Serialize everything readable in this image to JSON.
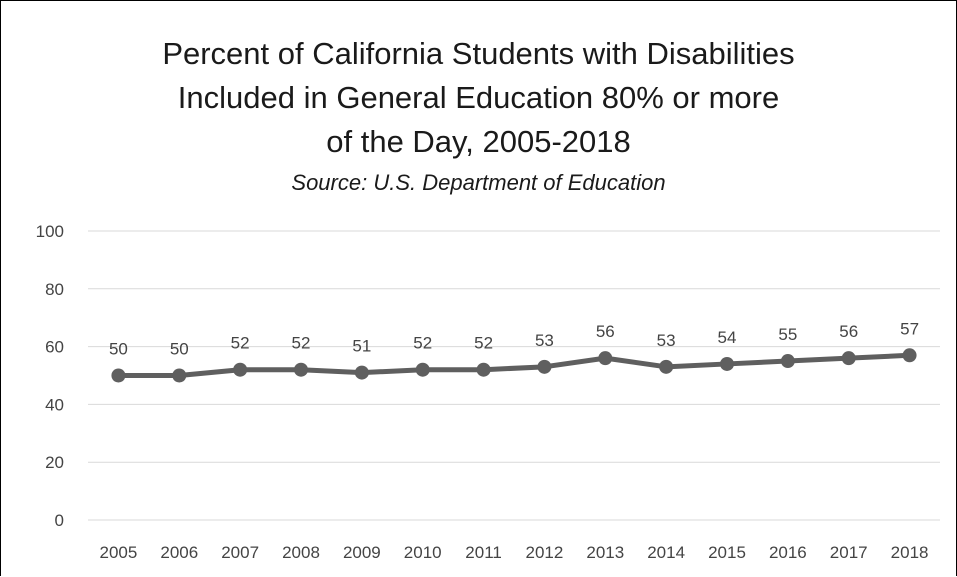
{
  "chart_data": {
    "type": "line",
    "title_lines": [
      "Percent of California Students with Disabilities",
      "Included in General Education 80% or more",
      "of the Day, 2005-2018"
    ],
    "subtitle": "Source:  U.S. Department of Education",
    "xlabel": "",
    "ylabel": "",
    "categories": [
      "2005",
      "2006",
      "2007",
      "2008",
      "2009",
      "2010",
      "2011",
      "2012",
      "2013",
      "2014",
      "2015",
      "2016",
      "2017",
      "2018"
    ],
    "series": [
      {
        "values": [
          50,
          50,
          52,
          52,
          51,
          52,
          52,
          53,
          56,
          53,
          54,
          55,
          56,
          57
        ]
      }
    ],
    "data_labels": [
      "50",
      "50",
      "52",
      "52",
      "51",
      "52",
      "52",
      "53",
      "56",
      "53",
      "54",
      "55",
      "56",
      "57"
    ],
    "ylim": [
      0,
      100
    ],
    "yticks": [
      0,
      20,
      40,
      60,
      80,
      100
    ],
    "ytick_labels": [
      "0",
      "20",
      "40",
      "60",
      "80",
      "100"
    ],
    "grid": true,
    "legend": "none",
    "colors": {
      "line": "#5f5f5f",
      "grid": "#d9d9d9",
      "text": "#444444"
    }
  }
}
